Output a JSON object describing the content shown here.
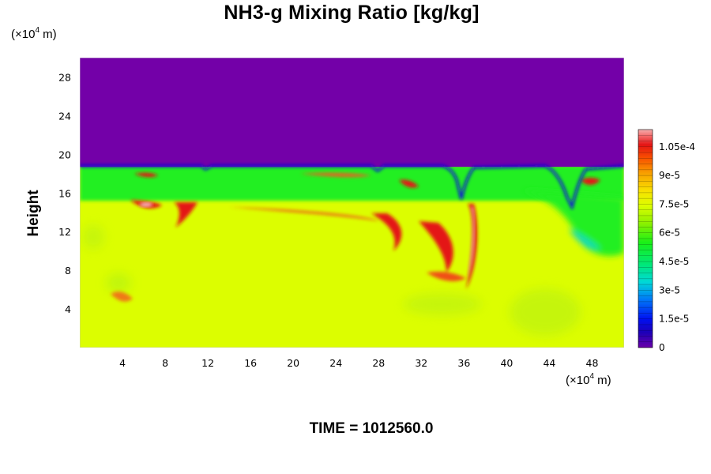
{
  "chart_data": {
    "type": "heatmap",
    "title": "NH3-g Mixing Ratio [kg/kg]",
    "ylabel": "Height",
    "xlabel": "",
    "x_unit": {
      "prefix": "(×10",
      "exp": "4",
      "suffix": " m)"
    },
    "y_unit": {
      "prefix": "(×10",
      "exp": "4",
      "suffix": " m)"
    },
    "footer": "TIME = 1012560.0",
    "xlim": [
      0,
      51
    ],
    "ylim": [
      0,
      30
    ],
    "x_ticks": [
      4,
      8,
      12,
      16,
      20,
      24,
      28,
      32,
      36,
      40,
      44,
      48
    ],
    "y_ticks": [
      4,
      8,
      12,
      16,
      20,
      24,
      28
    ],
    "colorbar": {
      "range": [
        0,
        0.000114
      ],
      "ticks": [
        {
          "value": 0,
          "label": "0"
        },
        {
          "value": 1.5e-05,
          "label": "1.5e-5"
        },
        {
          "value": 3e-05,
          "label": "3e-5"
        },
        {
          "value": 4.5e-05,
          "label": "4.5e-5"
        },
        {
          "value": 6e-05,
          "label": "6e-5"
        },
        {
          "value": 7.5e-05,
          "label": "7.5e-5"
        },
        {
          "value": 9e-05,
          "label": "9e-5"
        },
        {
          "value": 0.000105,
          "label": "1.05e-4"
        }
      ]
    },
    "fields": {
      "upper_layer_value": 0,
      "lower_layer_value": 8e-05,
      "band_value": 5.8e-05,
      "interface_height": 18.7,
      "band_bottom": 15.2
    },
    "colors": {
      "upper": "#7300a8",
      "lower": "#dcfe00",
      "band": "#22ef22",
      "interface": "#1010d8",
      "high": "#e41414",
      "peak": "#f4b4b4",
      "mid": "#a8f018"
    }
  }
}
